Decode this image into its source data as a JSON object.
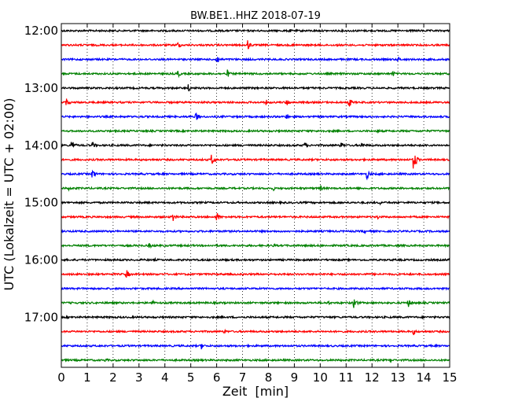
{
  "chart_data": {
    "type": "line",
    "title": "BW.BE1..HHZ 2018-07-19",
    "xlabel": "Zeit  [min]",
    "ylabel": "UTC (Lokalzeit = UTC + 02:00)",
    "xlim": [
      0,
      15
    ],
    "x_ticks": [
      0,
      1,
      2,
      3,
      4,
      5,
      6,
      7,
      8,
      9,
      10,
      11,
      12,
      13,
      14,
      15
    ],
    "x_tick_labels": [
      "0",
      "1",
      "2",
      "3",
      "4",
      "5",
      "6",
      "7",
      "8",
      "9",
      "10",
      "11",
      "12",
      "13",
      "14",
      "15"
    ],
    "y_tick_labels": [
      "12:00",
      "13:00",
      "14:00",
      "15:00",
      "16:00",
      "17:00"
    ],
    "trace_minutes_per_row": 15,
    "start_time": "12:00",
    "grid": "vertical dotted",
    "colors": [
      "#000000",
      "#ff0000",
      "#0000ff",
      "#008000"
    ],
    "series": [
      {
        "start": "12:00",
        "color": "#000000",
        "events": [
          {
            "x": 8.8,
            "amp": 3
          }
        ]
      },
      {
        "start": "12:15",
        "color": "#ff0000",
        "events": [
          {
            "x": 4.5,
            "amp": 5
          },
          {
            "x": 7.2,
            "amp": 7
          },
          {
            "x": 8.9,
            "amp": 3
          }
        ]
      },
      {
        "start": "12:30",
        "color": "#0000ff",
        "events": [
          {
            "x": 6.0,
            "amp": 7
          },
          {
            "x": 13.0,
            "amp": 4
          }
        ]
      },
      {
        "start": "12:45",
        "color": "#008000",
        "events": [
          {
            "x": 4.5,
            "amp": 5
          },
          {
            "x": 6.4,
            "amp": 6
          },
          {
            "x": 12.8,
            "amp": 4
          }
        ]
      },
      {
        "start": "13:00",
        "color": "#000000",
        "events": [
          {
            "x": 4.9,
            "amp": 5
          }
        ]
      },
      {
        "start": "13:15",
        "color": "#ff0000",
        "events": [
          {
            "x": 0.2,
            "amp": 6
          },
          {
            "x": 7.9,
            "amp": 4
          },
          {
            "x": 8.7,
            "amp": 5
          },
          {
            "x": 11.1,
            "amp": 7
          }
        ]
      },
      {
        "start": "13:30",
        "color": "#0000ff",
        "events": [
          {
            "x": 5.2,
            "amp": 6
          },
          {
            "x": 8.7,
            "amp": 5
          }
        ]
      },
      {
        "start": "13:45",
        "color": "#008000",
        "events": [
          {
            "x": 10.0,
            "amp": 4
          },
          {
            "x": 12.2,
            "amp": 3
          }
        ]
      },
      {
        "start": "14:00",
        "color": "#000000",
        "events": [
          {
            "x": 0.4,
            "amp": 8
          },
          {
            "x": 1.2,
            "amp": 5
          },
          {
            "x": 9.4,
            "amp": 5
          },
          {
            "x": 10.8,
            "amp": 5
          },
          {
            "x": 11.6,
            "amp": 5
          }
        ]
      },
      {
        "start": "14:15",
        "color": "#ff0000",
        "events": [
          {
            "x": 5.8,
            "amp": 8
          },
          {
            "x": 13.6,
            "amp": 14
          }
        ]
      },
      {
        "start": "14:30",
        "color": "#0000ff",
        "events": [
          {
            "x": 1.2,
            "amp": 7
          },
          {
            "x": 11.8,
            "amp": 7
          },
          {
            "x": 12.3,
            "amp": 3
          }
        ]
      },
      {
        "start": "14:45",
        "color": "#008000",
        "events": [
          {
            "x": 0.3,
            "amp": 3
          },
          {
            "x": 8.2,
            "amp": 3
          },
          {
            "x": 10.0,
            "amp": 4
          }
        ]
      },
      {
        "start": "15:00",
        "color": "#000000",
        "events": [
          {
            "x": 12.3,
            "amp": 3
          }
        ]
      },
      {
        "start": "15:15",
        "color": "#ff0000",
        "events": [
          {
            "x": 4.3,
            "amp": 7
          },
          {
            "x": 6.0,
            "amp": 7
          },
          {
            "x": 12.2,
            "amp": 4
          }
        ]
      },
      {
        "start": "15:30",
        "color": "#0000ff",
        "events": [
          {
            "x": 11.7,
            "amp": 3
          }
        ]
      },
      {
        "start": "15:45",
        "color": "#008000",
        "events": [
          {
            "x": 3.4,
            "amp": 4
          },
          {
            "x": 8.2,
            "amp": 3
          }
        ]
      },
      {
        "start": "16:00",
        "color": "#000000",
        "events": [
          {
            "x": 3.6,
            "amp": 2
          },
          {
            "x": 15.0,
            "amp": 4
          }
        ]
      },
      {
        "start": "16:15",
        "color": "#ff0000",
        "events": [
          {
            "x": 2.5,
            "amp": 7
          }
        ]
      },
      {
        "start": "16:30",
        "color": "#0000ff",
        "events": []
      },
      {
        "start": "16:45",
        "color": "#008000",
        "events": [
          {
            "x": 3.5,
            "amp": 4
          },
          {
            "x": 10.3,
            "amp": 3
          },
          {
            "x": 11.3,
            "amp": 8
          },
          {
            "x": 13.4,
            "amp": 6
          }
        ]
      },
      {
        "start": "17:00",
        "color": "#000000",
        "events": [
          {
            "x": 1.9,
            "amp": 2
          }
        ]
      },
      {
        "start": "17:15",
        "color": "#ff0000",
        "events": [
          {
            "x": 6.3,
            "amp": 3
          },
          {
            "x": 13.6,
            "amp": 5
          }
        ]
      },
      {
        "start": "17:30",
        "color": "#0000ff",
        "events": [
          {
            "x": 5.4,
            "amp": 5
          }
        ]
      },
      {
        "start": "17:45",
        "color": "#008000",
        "events": [
          {
            "x": 1.7,
            "amp": 3
          },
          {
            "x": 12.7,
            "amp": 3
          }
        ]
      }
    ]
  }
}
